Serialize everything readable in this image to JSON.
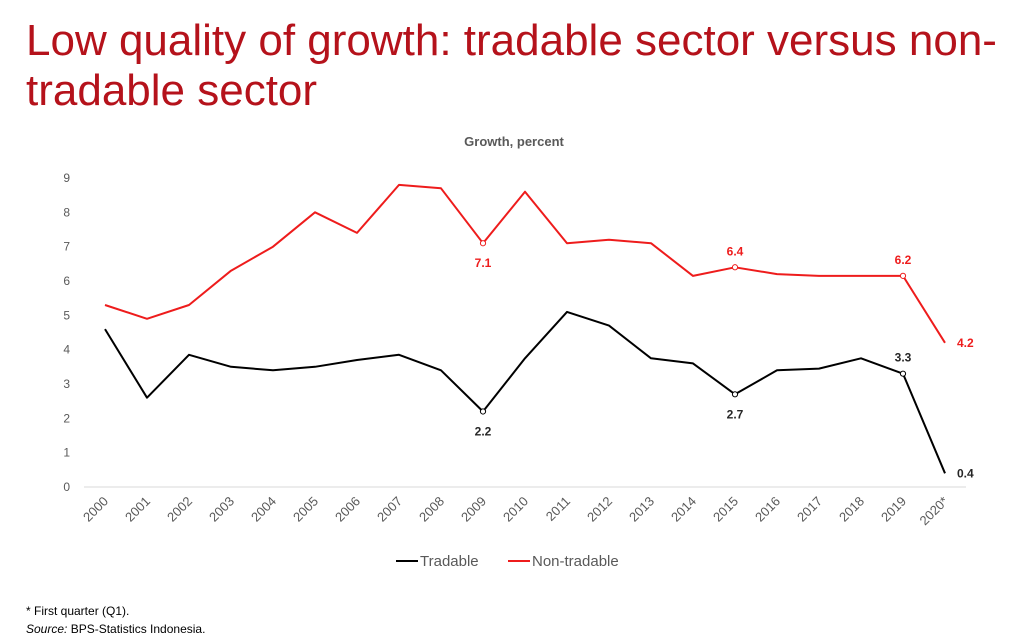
{
  "slide": {
    "title": "Low quality of growth: tradable sector versus non-tradable sector"
  },
  "footnotes": {
    "note": "* First quarter (Q1).",
    "source_label": "Source:",
    "source_text": " BPS-Statistics Indonesia."
  },
  "colors": {
    "tradable": "#000000",
    "non_tradable": "#ee1c1c",
    "title": "#b5121b",
    "axis_text": "#595959"
  },
  "chart_data": {
    "type": "line",
    "title": "Growth, percent",
    "xlabel": "",
    "ylabel": "",
    "ylim": [
      0,
      9
    ],
    "yticks": [
      0,
      1,
      2,
      3,
      4,
      5,
      6,
      7,
      8,
      9
    ],
    "categories": [
      "2000",
      "2001",
      "2002",
      "2003",
      "2004",
      "2005",
      "2006",
      "2007",
      "2008",
      "2009",
      "2010",
      "2011",
      "2012",
      "2013",
      "2014",
      "2015",
      "2016",
      "2017",
      "2018",
      "2019",
      "2020*"
    ],
    "legend_position": "bottom",
    "series": [
      {
        "name": "Tradable",
        "color": "#000000",
        "values": [
          4.6,
          2.6,
          3.85,
          3.5,
          3.4,
          3.5,
          3.7,
          3.85,
          3.4,
          2.2,
          3.75,
          5.1,
          4.7,
          3.75,
          3.6,
          2.7,
          3.4,
          3.45,
          3.75,
          3.3,
          0.4
        ],
        "labels": [
          {
            "index": 9,
            "text": "2.2",
            "place": "below"
          },
          {
            "index": 15,
            "text": "2.7",
            "place": "below"
          },
          {
            "index": 19,
            "text": "3.3",
            "place": "above"
          },
          {
            "index": 20,
            "text": "0.4",
            "place": "right"
          }
        ]
      },
      {
        "name": "Non-tradable",
        "color": "#ee1c1c",
        "values": [
          5.3,
          4.9,
          5.3,
          6.3,
          7.0,
          8.0,
          7.4,
          8.8,
          8.7,
          7.1,
          8.6,
          7.1,
          7.2,
          7.1,
          6.15,
          6.4,
          6.2,
          6.15,
          6.15,
          6.15,
          4.2
        ],
        "labels": [
          {
            "index": 9,
            "text": "7.1",
            "place": "below"
          },
          {
            "index": 15,
            "text": "6.4",
            "place": "above"
          },
          {
            "index": 19,
            "text": "6.2",
            "place": "above"
          },
          {
            "index": 20,
            "text": "4.2",
            "place": "right"
          }
        ]
      }
    ]
  }
}
